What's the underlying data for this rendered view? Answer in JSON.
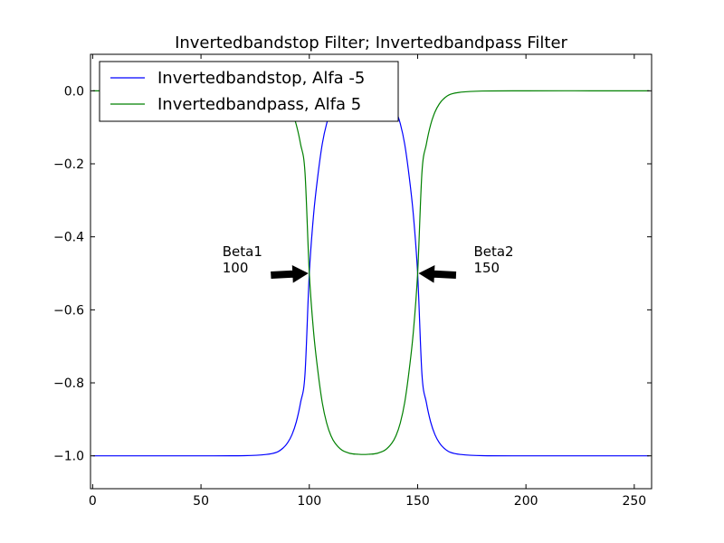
{
  "chart_data": {
    "type": "line",
    "title": "Invertedbandstop Filter; Invertedbandpass Filter",
    "xlabel": "",
    "ylabel": "",
    "xlim": [
      -1,
      258
    ],
    "ylim": [
      -1.09,
      0.1
    ],
    "x_ticks": [
      0,
      50,
      100,
      150,
      200,
      250
    ],
    "y_ticks": [
      0.0,
      -0.2,
      -0.4,
      -0.6,
      -0.8,
      -1.0
    ],
    "y_tick_labels": [
      "0.0",
      "−0.2",
      "−0.4",
      "−0.6",
      "−0.8",
      "−1.0"
    ],
    "grid": false,
    "legend_position": "top-left",
    "x": [
      0,
      25,
      50,
      70,
      80,
      85,
      88,
      90,
      92,
      94,
      96,
      98,
      100,
      102,
      104,
      106,
      108,
      110,
      112,
      115,
      118,
      120,
      122,
      125,
      128,
      130,
      132,
      135,
      138,
      140,
      142,
      144,
      146,
      148,
      150,
      152,
      154,
      156,
      158,
      160,
      162,
      165,
      170,
      180,
      200,
      230,
      257
    ],
    "series": [
      {
        "name": "Invertedbandstop, Alfa -5",
        "color": "#0000ff",
        "values": [
          -1.0,
          -1.0,
          -1.0,
          -0.9995,
          -0.9963,
          -0.99,
          -0.978,
          -0.964,
          -0.942,
          -0.907,
          -0.853,
          -0.777,
          -0.5,
          -0.338,
          -0.23,
          -0.145,
          -0.09,
          -0.055,
          -0.034,
          -0.016,
          -0.0082,
          -0.0055,
          -0.0045,
          -0.0037,
          -0.0045,
          -0.0055,
          -0.0082,
          -0.016,
          -0.034,
          -0.055,
          -0.09,
          -0.145,
          -0.23,
          -0.338,
          -0.5,
          -0.777,
          -0.853,
          -0.907,
          -0.942,
          -0.964,
          -0.978,
          -0.99,
          -0.9963,
          -0.9995,
          -1.0,
          -1.0,
          -1.0
        ]
      },
      {
        "name": "Invertedbandpass, Alfa 5",
        "color": "#008000",
        "values": [
          -0.0,
          -0.0,
          -0.0,
          -0.0005,
          -0.0037,
          -0.01,
          -0.022,
          -0.036,
          -0.058,
          -0.093,
          -0.147,
          -0.223,
          -0.5,
          -0.662,
          -0.77,
          -0.855,
          -0.91,
          -0.945,
          -0.966,
          -0.984,
          -0.9918,
          -0.9945,
          -0.9955,
          -0.9963,
          -0.9955,
          -0.9945,
          -0.9918,
          -0.984,
          -0.966,
          -0.945,
          -0.91,
          -0.855,
          -0.77,
          -0.662,
          -0.5,
          -0.223,
          -0.147,
          -0.093,
          -0.058,
          -0.036,
          -0.022,
          -0.01,
          -0.0037,
          -0.0005,
          -0.0,
          -0.0,
          -0.0
        ]
      }
    ],
    "annotations": [
      {
        "line1": "Beta1",
        "line2": "100",
        "x": 100,
        "y": -0.5,
        "side": "left"
      },
      {
        "line1": "Beta2",
        "line2": "150",
        "x": 150,
        "y": -0.5,
        "side": "right"
      }
    ]
  }
}
